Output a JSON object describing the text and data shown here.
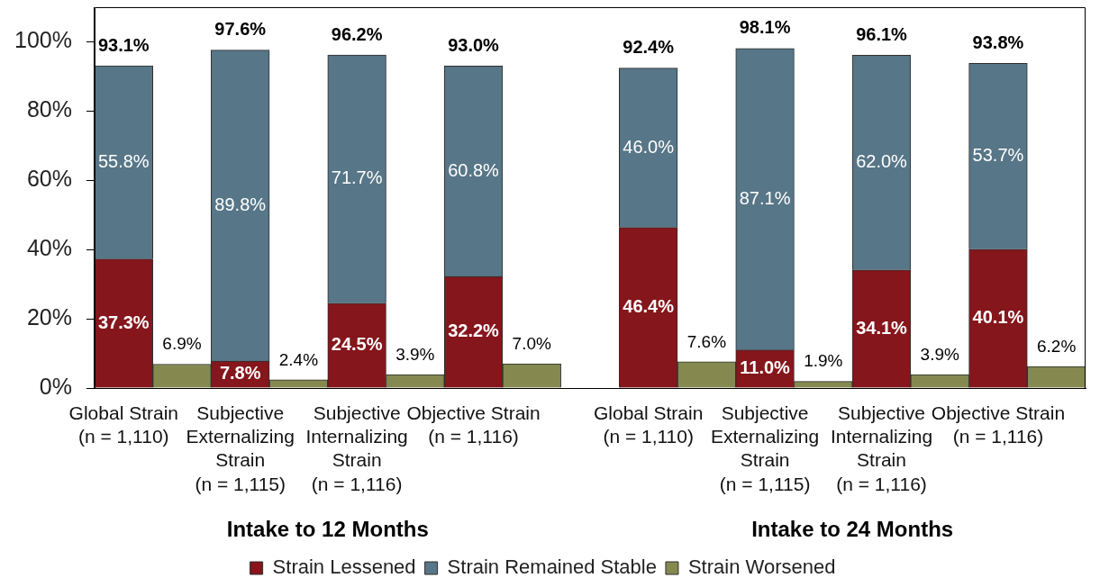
{
  "chart_data": {
    "type": "bar",
    "stacked": true,
    "categories": [
      "Global Strain\n(n = 1,110)",
      null,
      "Subjective\nExternalizing\nStrain\n(n = 1,115)",
      null,
      "Subjective\nInternalizing\nStrain\n(n = 1,116)",
      null,
      "Objective Strain\n(n = 1,116)",
      null,
      null,
      "Global Strain\n(n = 1,110)",
      null,
      "Subjective\nExternalizing\nStrain\n(n = 1,115)",
      null,
      "Subjective\nInternalizing\nStrain\n(n = 1,116)",
      null,
      "Objective Strain\n(n = 1,116)",
      null
    ],
    "series": [
      {
        "name": "Strain Lessened",
        "color": "#85161c",
        "values": [
          37.3,
          null,
          7.8,
          null,
          24.5,
          null,
          32.2,
          null,
          null,
          46.4,
          null,
          11.0,
          null,
          34.1,
          null,
          40.1,
          null
        ],
        "value_labels": [
          "37.3%",
          null,
          "7.8%",
          null,
          "24.5%",
          null,
          "32.2%",
          null,
          null,
          "46.4%",
          null,
          "11.0%",
          null,
          "34.1%",
          null,
          "40.1%",
          null
        ]
      },
      {
        "name": "Strain Remained Stable",
        "color": "#577687",
        "values": [
          55.8,
          null,
          89.8,
          null,
          71.7,
          null,
          60.8,
          null,
          null,
          46.0,
          null,
          87.1,
          null,
          62.0,
          null,
          53.7,
          null
        ],
        "value_labels": [
          "55.8%",
          null,
          "89.8%",
          null,
          "71.7%",
          null,
          "60.8%",
          null,
          null,
          "46.0%",
          null,
          "87.1%",
          null,
          "62.0%",
          null,
          "53.7%",
          null
        ]
      },
      {
        "name": "Strain Worsened",
        "color": "#85894f",
        "values": [
          null,
          6.9,
          null,
          2.4,
          null,
          3.9,
          null,
          7.0,
          null,
          null,
          7.6,
          null,
          1.9,
          null,
          3.9,
          null,
          6.2
        ],
        "value_labels": [
          null,
          "6.9%",
          null,
          "2.4%",
          null,
          "3.9%",
          null,
          "7.0%",
          null,
          null,
          "7.6%",
          null,
          "1.9%",
          null,
          "3.9%",
          null,
          "6.2%"
        ]
      }
    ],
    "totals": [
      "93.1%",
      null,
      "97.6%",
      null,
      "96.2%",
      null,
      "93.0%",
      null,
      null,
      "92.4%",
      null,
      "98.1%",
      null,
      "96.1%",
      null,
      "93.8%",
      null
    ],
    "ylim": [
      0,
      110
    ],
    "yticks": [
      {
        "value": 0,
        "label": "0%"
      },
      {
        "value": 20,
        "label": "20%"
      },
      {
        "value": 40,
        "label": "40%"
      },
      {
        "value": 60,
        "label": "60%"
      },
      {
        "value": 80,
        "label": "80%"
      },
      {
        "value": 100,
        "label": "100%"
      }
    ],
    "grid": false,
    "legend": "bottom",
    "annotations": [
      "Intake to 12 Months",
      "Intake to 24 Months"
    ]
  }
}
